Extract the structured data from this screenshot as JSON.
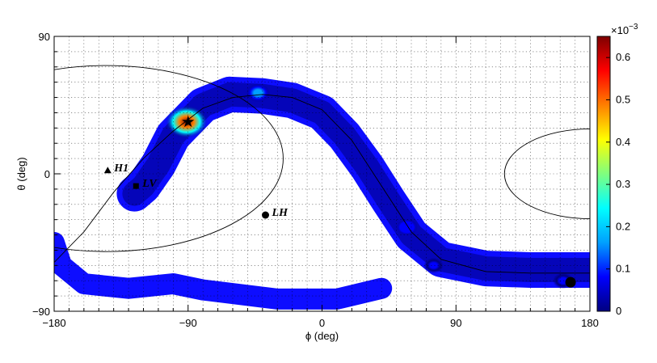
{
  "chart_data": {
    "type": "heatmap",
    "title": "",
    "xlabel": "ϕ (deg)",
    "ylabel": "θ (deg)",
    "xlim": [
      -180,
      180
    ],
    "ylim": [
      -90,
      90
    ],
    "x_ticks": [
      -180,
      -90,
      0,
      90,
      180
    ],
    "y_ticks": [
      -90,
      0,
      90
    ],
    "x_tick_labels": [
      "−180",
      "−90",
      "0",
      "90",
      "180"
    ],
    "y_tick_labels": [
      "−90",
      "0",
      "90"
    ],
    "grid": true,
    "colorbar": {
      "range": [
        0,
        0.65
      ],
      "ticks": [
        0,
        0.1,
        0.2,
        0.3,
        0.4,
        0.5,
        0.6
      ],
      "tick_labels": [
        "0",
        "0.1",
        "0.2",
        "0.3",
        "0.4",
        "0.5",
        "0.6"
      ],
      "exponent_label": "×10",
      "exponent_power": "−3",
      "colormap": [
        "#00007f",
        "#0000ff",
        "#00a0ff",
        "#00ffff",
        "#7fff7f",
        "#ffff00",
        "#ff8000",
        "#ff0000",
        "#7f0000"
      ]
    },
    "sky_band": {
      "path_phi_theta": [
        [
          -126,
          -13
        ],
        [
          -120,
          -8
        ],
        [
          -110,
          6
        ],
        [
          -100,
          25
        ],
        [
          -90,
          35
        ],
        [
          -80,
          45
        ],
        [
          -62,
          52
        ],
        [
          -40,
          51
        ],
        [
          -20,
          48
        ],
        [
          0,
          40
        ],
        [
          15,
          25
        ],
        [
          30,
          5
        ],
        [
          45,
          -18
        ],
        [
          60,
          -40
        ],
        [
          80,
          -56
        ],
        [
          110,
          -62
        ],
        [
          140,
          -63
        ],
        [
          180,
          -63
        ]
      ],
      "hotspots": [
        {
          "phi": -91,
          "theta": 34,
          "peak": 0.65
        },
        {
          "phi": -43,
          "theta": 53,
          "peak": 0.18
        },
        {
          "phi": 57,
          "theta": -35,
          "peak": 0.12
        },
        {
          "phi": 75,
          "theta": -60,
          "peak": 0.08
        },
        {
          "phi": 162,
          "theta": -70,
          "peak": 0.1
        }
      ]
    },
    "markers": [
      {
        "label": "H1",
        "phi": -144,
        "theta": 2,
        "symbol": "triangle"
      },
      {
        "label": "LV",
        "phi": -125,
        "theta": -8,
        "symbol": "square"
      },
      {
        "label": "LH",
        "phi": -38,
        "theta": -27,
        "symbol": "circle"
      },
      {
        "label": "",
        "phi": 167,
        "theta": -71,
        "symbol": "circle-large"
      },
      {
        "label": "",
        "phi": -90,
        "theta": 34,
        "symbol": "star"
      }
    ],
    "contour_circles": [
      {
        "center_phi": -145,
        "center_theta": 10,
        "radius_deg": 58
      },
      {
        "center_phi": 180,
        "center_theta": 0,
        "radius_deg": 28
      }
    ],
    "great_circle": [
      [
        -180,
        -58
      ],
      [
        -160,
        -38
      ],
      [
        -140,
        -12
      ],
      [
        -120,
        10
      ],
      [
        -100,
        28
      ],
      [
        -80,
        43
      ],
      [
        -60,
        50
      ],
      [
        -40,
        52
      ],
      [
        -20,
        50
      ],
      [
        0,
        42
      ],
      [
        20,
        22
      ],
      [
        40,
        -8
      ],
      [
        60,
        -38
      ],
      [
        80,
        -56
      ],
      [
        110,
        -64
      ],
      [
        140,
        -65
      ],
      [
        180,
        -65
      ]
    ]
  }
}
